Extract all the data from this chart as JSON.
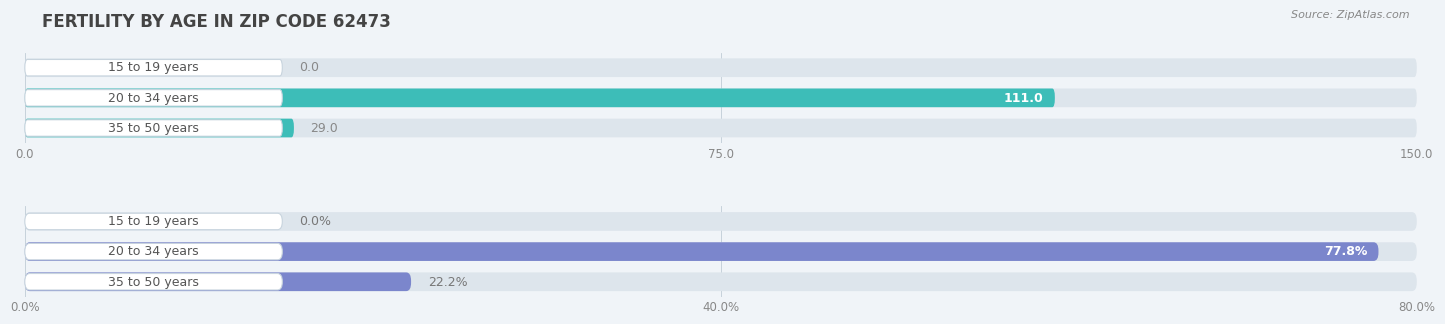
{
  "title": "FERTILITY BY AGE IN ZIP CODE 62473",
  "source": "Source: ZipAtlas.com",
  "top_chart": {
    "categories": [
      "15 to 19 years",
      "20 to 34 years",
      "35 to 50 years"
    ],
    "values": [
      0.0,
      111.0,
      29.0
    ],
    "xlim": [
      0,
      150.0
    ],
    "xticks": [
      0.0,
      75.0,
      150.0
    ],
    "xtick_labels": [
      "0.0",
      "75.0",
      "150.0"
    ],
    "bar_color": "#3dbdb8",
    "bar_bg_color": "#dde5ec",
    "label_color_inside": "#ffffff",
    "label_color_outside": "#888888",
    "value_threshold": 100
  },
  "bottom_chart": {
    "categories": [
      "15 to 19 years",
      "20 to 34 years",
      "35 to 50 years"
    ],
    "values": [
      0.0,
      77.8,
      22.2
    ],
    "xlim": [
      0,
      80.0
    ],
    "xticks": [
      0.0,
      40.0,
      80.0
    ],
    "xtick_labels": [
      "0.0%",
      "40.0%",
      "80.0%"
    ],
    "bar_color": "#7b86cc",
    "bar_bg_color": "#dde5ec",
    "label_color_inside": "#ffffff",
    "label_color_outside": "#777777",
    "value_threshold": 60
  },
  "background_color": "#f0f4f8",
  "label_bg_color": "#ffffff",
  "label_text_color": "#555555",
  "title_color": "#444444",
  "title_fontsize": 12,
  "bar_height": 0.62,
  "label_fontsize": 9.0,
  "value_fontsize": 9.0
}
